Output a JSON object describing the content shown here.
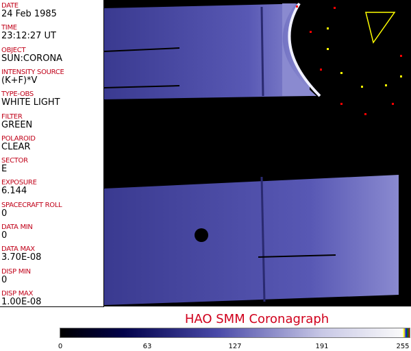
{
  "fields": [
    {
      "label": "DATE",
      "value": "24 Feb 1985"
    },
    {
      "label": "TIME",
      "value": "23:12:27 UT"
    },
    {
      "label": "OBJECT",
      "value": "SUN:CORONA"
    },
    {
      "label": "INTENSITY SOURCE",
      "value": "(K+F)*V"
    },
    {
      "label": "TYPE-OBS",
      "value": "WHITE LIGHT"
    },
    {
      "label": "FILTER",
      "value": "GREEN"
    },
    {
      "label": "POLAROID",
      "value": "CLEAR"
    },
    {
      "label": "SECTOR",
      "value": "E"
    },
    {
      "label": "EXPOSURE",
      "value": "6.144"
    },
    {
      "label": "SPACECRAFT ROLL",
      "value": "0"
    },
    {
      "label": "DATA MIN",
      "value": "0"
    },
    {
      "label": "DATA MAX",
      "value": "3.70E-08"
    },
    {
      "label": "DISP MIN",
      "value": "0"
    },
    {
      "label": "DISP MAX",
      "value": "1.00E-08"
    }
  ],
  "title": "HAO  SMM Coronagraph",
  "colorbar": {
    "ticks": [
      "0",
      "63",
      "127",
      "191",
      "255"
    ],
    "colormap": "black-blue-white",
    "label_color": "#d0001c"
  }
}
